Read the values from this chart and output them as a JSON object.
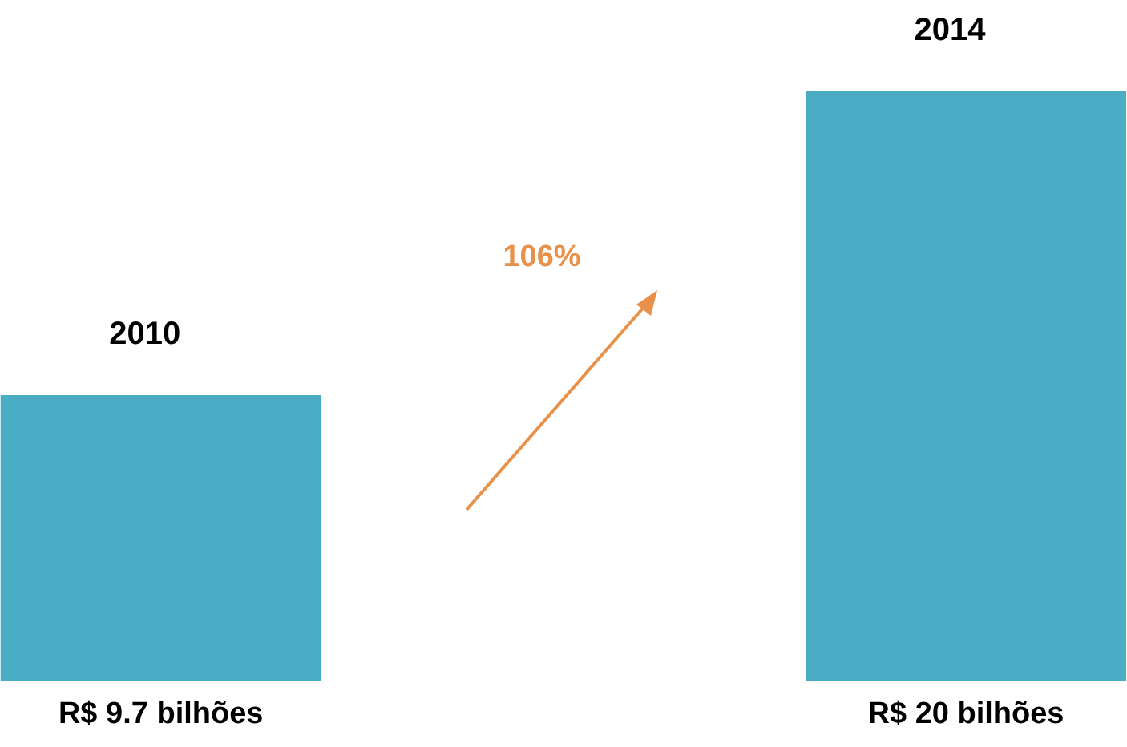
{
  "chart_data": {
    "type": "bar",
    "categories": [
      "2010",
      "2014"
    ],
    "values": [
      9.7,
      20
    ],
    "color": "#4bacc6",
    "value_labels": [
      "R$ 9.7 bilhões",
      "R$ 20 bilhões"
    ],
    "annotations": [
      "106%"
    ],
    "grid": false,
    "legend": false
  }
}
